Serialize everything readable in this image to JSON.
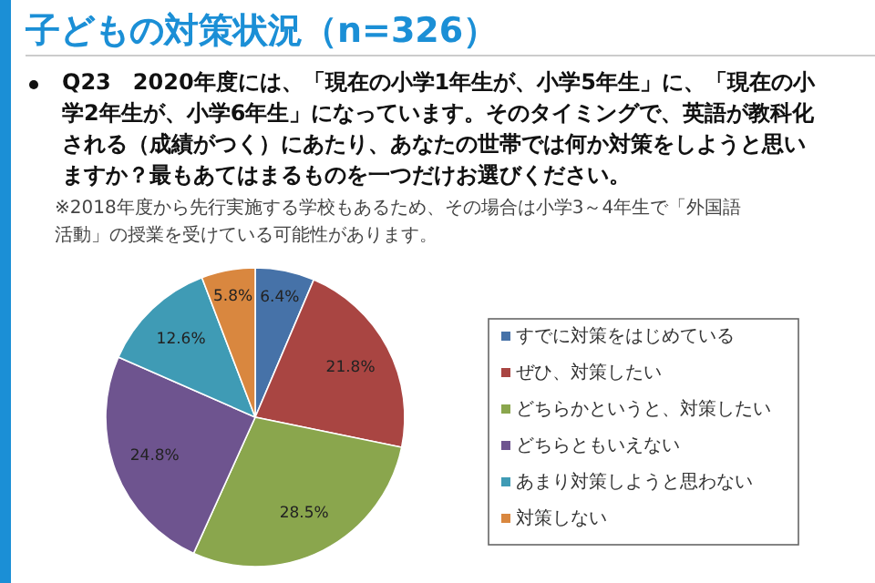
{
  "chart_data": {
    "type": "pie",
    "title": "子どもの対策状況（n=326）",
    "subtitle": "Q23　2020年度には、「現在の小学1年生が、小学5年生」に、「現在の小学2年生が、小学6年生」になっています。そのタイミングで、英語が教科化される（成績がつく）にあたり、あなたの世帯では何か対策をしようと思いますか？最もあてはまるものを一つだけお選びください。",
    "annotations": [
      "※2018年度から先行実施する学校もあるため、その場合は小学3～4年生で「外国語活動」の授業を受けている可能性があります。"
    ],
    "categories": [
      "すでに対策をはじめている",
      "ぜひ、対策したい",
      "どちらかというと、対策したい",
      "どちらともいえない",
      "あまり対策しようと思わない",
      "対策しない"
    ],
    "values": [
      6.4,
      21.8,
      28.5,
      24.8,
      12.6,
      5.8
    ],
    "value_labels": [
      "6.4%",
      "21.8%",
      "28.5%",
      "24.8%",
      "12.6%",
      "5.8%"
    ],
    "colors": [
      "#4672a8",
      "#a94542",
      "#8aa64d",
      "#6e548f",
      "#3f9bb5",
      "#d9873f"
    ],
    "legend": "right"
  }
}
